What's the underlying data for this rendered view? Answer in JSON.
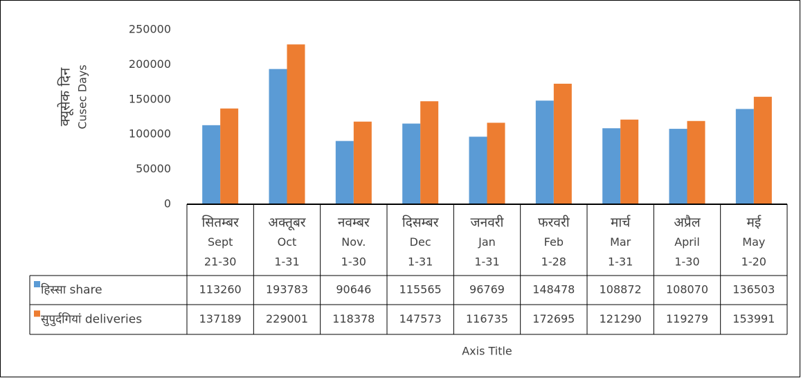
{
  "chart_data": {
    "type": "bar",
    "ylabel": [
      "क्यूसेक दिन",
      "Cusec Days"
    ],
    "xlabel": "Axis Title",
    "categories": [
      [
        "सितम्बर",
        "Sept",
        "21-30"
      ],
      [
        "अक्तूबर",
        "Oct",
        "1-31"
      ],
      [
        "नवम्बर",
        "Nov.",
        "1-30"
      ],
      [
        "दिसम्बर",
        "Dec",
        "1-31"
      ],
      [
        "जनवरी",
        "Jan",
        "1-31"
      ],
      [
        "फरवरी",
        "Feb",
        "1-28"
      ],
      [
        "मार्च",
        "Mar",
        "1-31"
      ],
      [
        "अप्रैल",
        "April",
        "1-30"
      ],
      [
        "मई",
        "May",
        "1-20"
      ]
    ],
    "series": [
      {
        "name": "हिस्सा share",
        "color": "#5b9bd5",
        "values": [
          113260,
          193783,
          90646,
          115565,
          96769,
          148478,
          108872,
          108070,
          136503
        ]
      },
      {
        "name": "सुपुर्दगियां deliveries",
        "color": "#ed7d31",
        "values": [
          137189,
          229001,
          118378,
          147573,
          116735,
          172695,
          121290,
          119279,
          153991
        ]
      }
    ],
    "ylim": [
      0,
      250000
    ],
    "yticks": [
      0,
      50000,
      100000,
      150000,
      200000,
      250000
    ],
    "grid": false,
    "data_table": true
  }
}
